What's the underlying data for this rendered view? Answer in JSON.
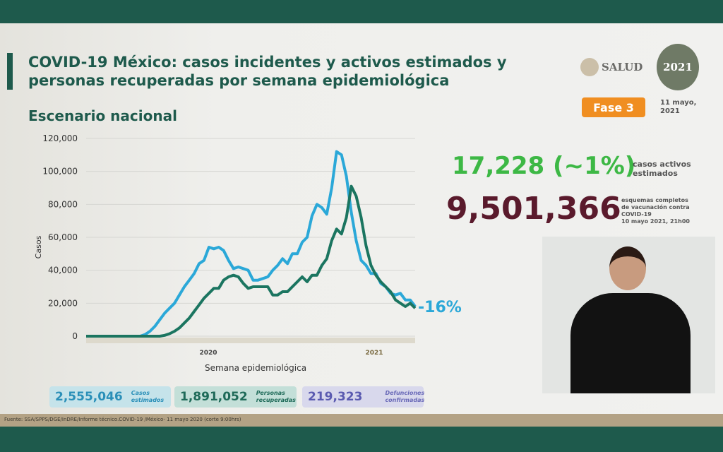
{
  "header": {
    "title": "COVID-19 México: casos incidentes y activos estimados y personas recuperadas por semana epidemiológica",
    "subtitle": "Escenario nacional"
  },
  "logos": {
    "salud": "SALUD",
    "year_logo": "2021"
  },
  "badge": {
    "phase": "Fase 3",
    "phase_color": "#f08e21"
  },
  "date": "11 mayo, 2021",
  "active": {
    "value": "17,228 (~1%)",
    "label": "casos activos estimados"
  },
  "vaccination": {
    "value": "9,501,366",
    "label_lines": [
      "esquemas completos",
      "de vacunación contra",
      "COVID-19",
      "10 mayo 2021, 21h00"
    ]
  },
  "stats": [
    {
      "value": "2,555,046",
      "label_lines": [
        "Casos",
        "estimados"
      ],
      "color": "#2a8fb8"
    },
    {
      "value": "1,891,052",
      "label_lines": [
        "Personas",
        "recuperadas"
      ],
      "color": "#1e6a58"
    },
    {
      "value": "219,323",
      "label_lines": [
        "Defunciones",
        "confirmadas"
      ],
      "color": "#6a6ab8"
    }
  ],
  "footer": "Fuente: SSA/SPPS/DGE/InDRE/Informe técnico.COVID-19 /México- 11 mayo 2020 (corte 9:00hrs)",
  "chart_data": {
    "type": "line",
    "xlabel": "Semana epidemiológica",
    "ylabel": "Casos",
    "ylim": [
      0,
      120000
    ],
    "yticks": [
      "0",
      "20,000",
      "40,000",
      "60,000",
      "80,000",
      "100,000",
      "120,000"
    ],
    "year_labels": [
      "2020",
      "2021"
    ],
    "grid": true,
    "annotation": "-16%",
    "series": [
      {
        "color": "#2ba8d8",
        "values": [
          0,
          0,
          0,
          0,
          0,
          0,
          0,
          0,
          0,
          0,
          0,
          0,
          1000,
          3000,
          6000,
          10000,
          14000,
          17000,
          20000,
          25000,
          30000,
          34000,
          38000,
          44000,
          46000,
          54000,
          53000,
          54000,
          52000,
          46000,
          41000,
          42000,
          41000,
          40000,
          34000,
          34000,
          35000,
          36000,
          40000,
          43000,
          47000,
          44000,
          50000,
          50000,
          57000,
          60000,
          73000,
          80000,
          78000,
          74000,
          90000,
          112000,
          110000,
          97000,
          75000,
          58000,
          46000,
          43000,
          38000,
          38000,
          32000,
          30000,
          26000,
          25000,
          26000,
          22000,
          22000,
          18000
        ]
      },
      {
        "color": "#1b7560",
        "values": [
          0,
          0,
          0,
          0,
          0,
          0,
          0,
          0,
          0,
          0,
          0,
          0,
          0,
          0,
          0,
          0,
          500,
          1500,
          3000,
          5000,
          8000,
          11000,
          15000,
          19000,
          23000,
          26000,
          29000,
          29000,
          34000,
          36000,
          37000,
          36000,
          32000,
          29000,
          30000,
          30000,
          30000,
          30000,
          25000,
          25000,
          27000,
          27000,
          30000,
          33000,
          36000,
          33000,
          37000,
          37000,
          43000,
          47000,
          58000,
          65000,
          62000,
          72000,
          91000,
          85000,
          72000,
          55000,
          43000,
          37000,
          33000,
          30000,
          27000,
          22000,
          20000,
          18000,
          20000,
          17000
        ]
      }
    ]
  }
}
